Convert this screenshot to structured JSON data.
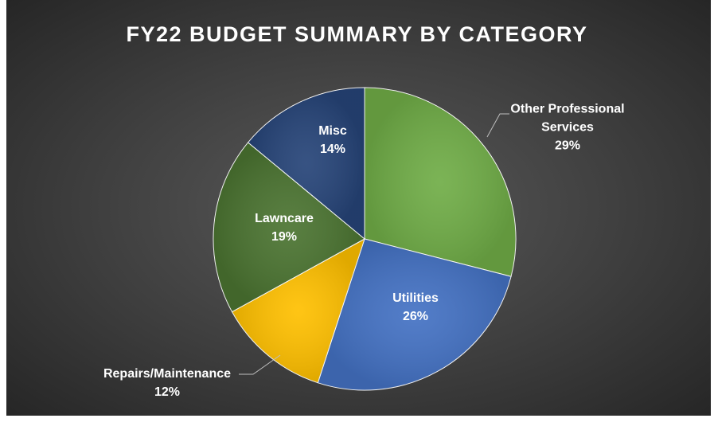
{
  "chart_data": {
    "type": "pie",
    "title": "FY22 BUDGET SUMMARY BY CATEGORY",
    "categories": [
      "Other Professional Services",
      "Utilities",
      "Repairs/Maintenance",
      "Lawncare",
      "Misc"
    ],
    "values": [
      29,
      26,
      12,
      19,
      14
    ],
    "value_labels": [
      "29%",
      "26%",
      "12%",
      "19%",
      "14%"
    ],
    "colors": [
      "#70ad47",
      "#4472c4",
      "#ffc000",
      "#4b7431",
      "#264478"
    ]
  }
}
